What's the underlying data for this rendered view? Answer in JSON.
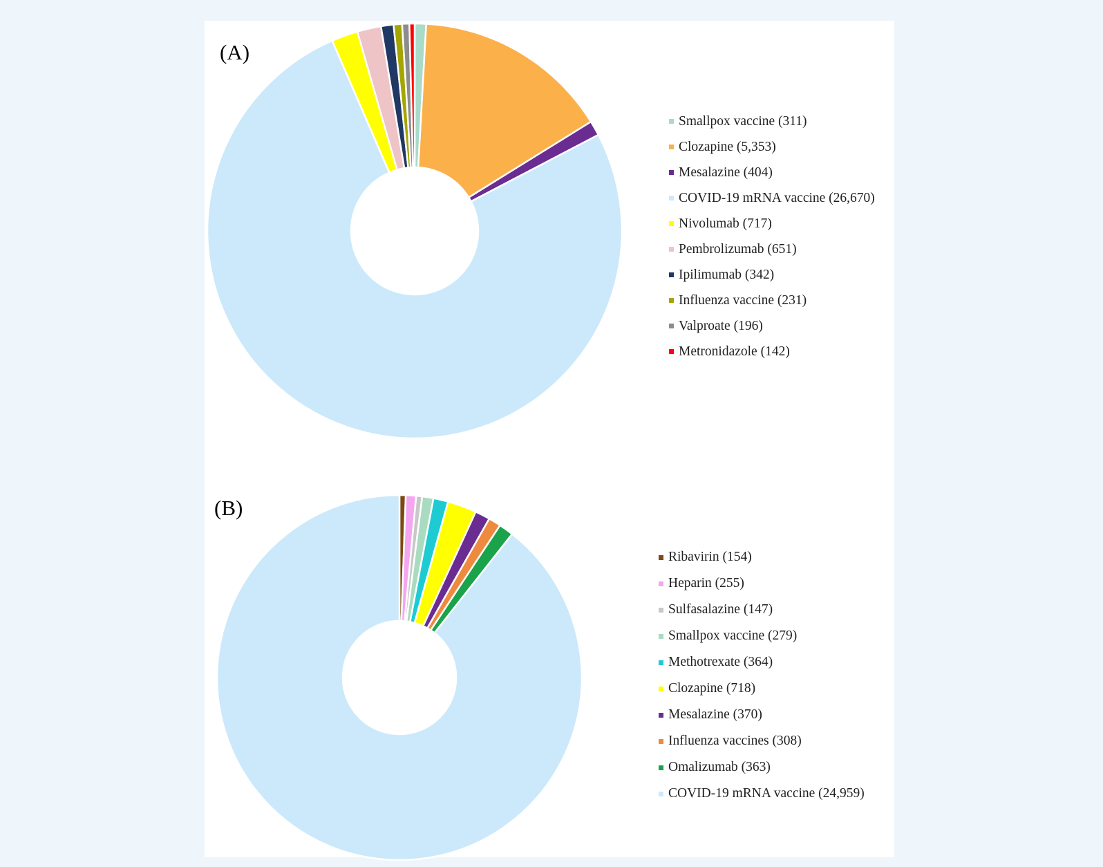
{
  "chart_data": [
    {
      "type": "pie",
      "variant": "donut",
      "panel_label": "(A)",
      "slices": [
        {
          "label": "Smallpox vaccine",
          "value": 311,
          "display": "Smallpox vaccine (311)",
          "color": "#a9dbc8"
        },
        {
          "label": "Clozapine",
          "value": 5353,
          "display": "Clozapine (5,353)",
          "color": "#fbb04a"
        },
        {
          "label": "Mesalazine",
          "value": 404,
          "display": "Mesalazine (404)",
          "color": "#6a2c91"
        },
        {
          "label": "COVID-19 mRNA vaccine",
          "value": 26670,
          "display": "COVID-19 mRNA vaccine (26,670)",
          "color": "#cce9fb"
        },
        {
          "label": "Nivolumab",
          "value": 717,
          "display": "Nivolumab (717)",
          "color": "#ffff00"
        },
        {
          "label": "Pembrolizumab",
          "value": 651,
          "display": "Pembrolizumab (651)",
          "color": "#eec4c6"
        },
        {
          "label": "Ipilimumab",
          "value": 342,
          "display": "Ipilimumab (342)",
          "color": "#1f3864"
        },
        {
          "label": "Influenza vaccine",
          "value": 231,
          "display": "Influenza vaccine (231)",
          "color": "#a5a500"
        },
        {
          "label": "Valproate",
          "value": 196,
          "display": "Valproate (196)",
          "color": "#8c8c8c"
        },
        {
          "label": "Metronidazole",
          "value": 142,
          "display": "Metronidazole (142)",
          "color": "#ff0000"
        }
      ]
    },
    {
      "type": "pie",
      "variant": "donut",
      "panel_label": "(B)",
      "slices": [
        {
          "label": "Ribavirin",
          "value": 154,
          "display": "Ribavirin (154)",
          "color": "#7b4a12"
        },
        {
          "label": "Heparin",
          "value": 255,
          "display": "Heparin (255)",
          "color": "#f4a6f0"
        },
        {
          "label": "Sulfasalazine",
          "value": 147,
          "display": "Sulfasalazine (147)",
          "color": "#c8c8c8"
        },
        {
          "label": "Smallpox vaccine",
          "value": 279,
          "display": "Smallpox vaccine (279)",
          "color": "#a9dbc0"
        },
        {
          "label": "Methotrexate",
          "value": 364,
          "display": "Methotrexate (364)",
          "color": "#1ecbd3"
        },
        {
          "label": "Clozapine",
          "value": 718,
          "display": "Clozapine (718)",
          "color": "#ffff00"
        },
        {
          "label": "Mesalazine",
          "value": 370,
          "display": "Mesalazine (370)",
          "color": "#6a2c91"
        },
        {
          "label": "Influenza vaccines",
          "value": 308,
          "display": "Influenza vaccines (308)",
          "color": "#ee8a3e"
        },
        {
          "label": "Omalizumab",
          "value": 363,
          "display": "Omalizumab (363)",
          "color": "#1aa34a"
        },
        {
          "label": "COVID-19 mRNA vaccine",
          "value": 24959,
          "display": "COVID-19 mRNA vaccine (24,959)",
          "color": "#cce9fb"
        }
      ]
    }
  ]
}
